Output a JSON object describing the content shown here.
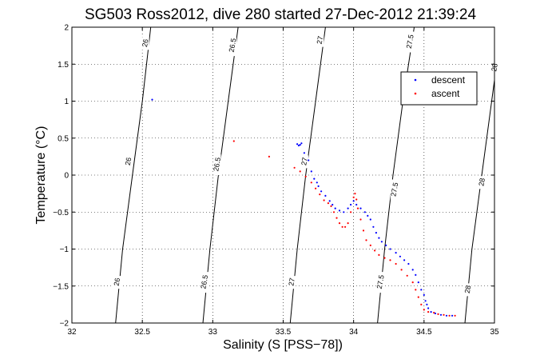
{
  "chart_data": {
    "type": "scatter",
    "title": "SG503 Ross2012, dive 280 started 27-Dec-2012 21:39:24",
    "xlabel": "Salinity (S [PSS−78])",
    "ylabel": "Temperature (°C)",
    "xlim": [
      32,
      35
    ],
    "ylim": [
      -2,
      2
    ],
    "xticks": [
      {
        "value": 32,
        "label": "32"
      },
      {
        "value": 32.5,
        "label": "32.5"
      },
      {
        "value": 33,
        "label": "33"
      },
      {
        "value": 33.5,
        "label": "33.5"
      },
      {
        "value": 34,
        "label": "34"
      },
      {
        "value": 34.5,
        "label": "34.5"
      },
      {
        "value": 35,
        "label": "35"
      }
    ],
    "yticks": [
      {
        "value": -2,
        "label": "−2"
      },
      {
        "value": -1.5,
        "label": "−1.5"
      },
      {
        "value": -1,
        "label": "−1"
      },
      {
        "value": -0.5,
        "label": "−0.5"
      },
      {
        "value": 0,
        "label": "0"
      },
      {
        "value": 0.5,
        "label": "0.5"
      },
      {
        "value": 1,
        "label": "1"
      },
      {
        "value": 1.5,
        "label": "1.5"
      },
      {
        "value": 2,
        "label": "2"
      }
    ],
    "grid": true,
    "legend_position": "top-right",
    "isopycnals": [
      {
        "label": "26",
        "points": [
          [
            32.31,
            -2
          ],
          [
            32.36,
            -1.0
          ],
          [
            32.43,
            0.0
          ],
          [
            32.5,
            1.0
          ],
          [
            32.56,
            2
          ]
        ],
        "label_points": [
          [
            32.32,
            -1.45
          ],
          [
            32.4,
            0.18
          ],
          [
            32.52,
            1.78
          ]
        ]
      },
      {
        "label": "26.5",
        "points": [
          [
            32.93,
            -2
          ],
          [
            32.98,
            -1.0
          ],
          [
            33.04,
            0.0
          ],
          [
            33.11,
            1.0
          ],
          [
            33.18,
            2
          ]
        ],
        "label_points": [
          [
            32.94,
            -1.45
          ],
          [
            33.03,
            0.14
          ],
          [
            33.14,
            1.75
          ]
        ]
      },
      {
        "label": "27",
        "points": [
          [
            33.55,
            -2
          ],
          [
            33.6,
            -1.0
          ],
          [
            33.66,
            0.0
          ],
          [
            33.73,
            1.0
          ],
          [
            33.8,
            2
          ]
        ],
        "label_points": [
          [
            33.56,
            -1.45
          ],
          [
            33.65,
            0.18
          ],
          [
            33.76,
            1.82
          ]
        ]
      },
      {
        "label": "27.5",
        "points": [
          [
            34.17,
            -2
          ],
          [
            34.22,
            -1.0
          ],
          [
            34.28,
            0.0
          ],
          [
            34.35,
            1.0
          ],
          [
            34.43,
            2
          ]
        ],
        "label_points": [
          [
            34.19,
            -1.45
          ],
          [
            34.29,
            -0.2
          ],
          [
            34.4,
            1.8
          ]
        ]
      },
      {
        "label": "28",
        "points": [
          [
            34.79,
            -2
          ],
          [
            34.84,
            -1.0
          ],
          [
            34.91,
            0.0
          ],
          [
            34.98,
            1.0
          ],
          [
            35.05,
            2
          ]
        ],
        "label_points": [
          [
            34.81,
            -1.55
          ],
          [
            34.91,
            -0.1
          ],
          [
            35.0,
            1.45
          ]
        ]
      }
    ],
    "series": [
      {
        "name": "descent",
        "color": "#0000ff",
        "points": [
          [
            32.57,
            1.02
          ],
          [
            33.6,
            0.42
          ],
          [
            33.61,
            0.4
          ],
          [
            33.62,
            0.41
          ],
          [
            33.63,
            0.43
          ],
          [
            33.65,
            0.3
          ],
          [
            33.68,
            0.2
          ],
          [
            33.7,
            0.05
          ],
          [
            33.72,
            -0.05
          ],
          [
            33.74,
            -0.1
          ],
          [
            33.75,
            -0.15
          ],
          [
            33.77,
            -0.22
          ],
          [
            33.8,
            -0.28
          ],
          [
            33.83,
            -0.35
          ],
          [
            33.85,
            -0.4
          ],
          [
            33.87,
            -0.45
          ],
          [
            33.9,
            -0.48
          ],
          [
            33.93,
            -0.5
          ],
          [
            33.96,
            -0.45
          ],
          [
            33.98,
            -0.4
          ],
          [
            34.0,
            -0.35
          ],
          [
            34.02,
            -0.4
          ],
          [
            34.05,
            -0.45
          ],
          [
            34.08,
            -0.5
          ],
          [
            34.1,
            -0.55
          ],
          [
            34.12,
            -0.6
          ],
          [
            34.14,
            -0.7
          ],
          [
            34.16,
            -0.78
          ],
          [
            34.18,
            -0.85
          ],
          [
            34.2,
            -0.9
          ],
          [
            34.23,
            -0.95
          ],
          [
            34.26,
            -1.0
          ],
          [
            34.3,
            -1.05
          ],
          [
            34.33,
            -1.1
          ],
          [
            34.36,
            -1.15
          ],
          [
            34.39,
            -1.2
          ],
          [
            34.42,
            -1.28
          ],
          [
            34.44,
            -1.35
          ],
          [
            34.46,
            -1.45
          ],
          [
            34.48,
            -1.55
          ],
          [
            34.5,
            -1.62
          ],
          [
            34.51,
            -1.7
          ],
          [
            34.52,
            -1.75
          ],
          [
            34.53,
            -1.8
          ],
          [
            34.55,
            -1.85
          ],
          [
            34.58,
            -1.87
          ],
          [
            34.62,
            -1.89
          ],
          [
            34.66,
            -1.9
          ],
          [
            34.7,
            -1.9
          ]
        ]
      },
      {
        "name": "ascent",
        "color": "#ff0000",
        "points": [
          [
            33.15,
            0.46
          ],
          [
            33.4,
            0.25
          ],
          [
            33.58,
            0.1
          ],
          [
            33.62,
            0.05
          ],
          [
            33.66,
            -0.02
          ],
          [
            33.7,
            -0.1
          ],
          [
            33.73,
            -0.18
          ],
          [
            33.76,
            -0.26
          ],
          [
            33.79,
            -0.34
          ],
          [
            33.82,
            -0.38
          ],
          [
            33.84,
            -0.42
          ],
          [
            33.86,
            -0.5
          ],
          [
            33.88,
            -0.58
          ],
          [
            33.9,
            -0.65
          ],
          [
            33.92,
            -0.7
          ],
          [
            33.94,
            -0.7
          ],
          [
            33.96,
            -0.65
          ],
          [
            33.98,
            -0.5
          ],
          [
            34.0,
            -0.3
          ],
          [
            34.01,
            -0.25
          ],
          [
            34.02,
            -0.33
          ],
          [
            34.03,
            -0.45
          ],
          [
            34.05,
            -0.6
          ],
          [
            34.07,
            -0.75
          ],
          [
            34.09,
            -0.88
          ],
          [
            34.12,
            -0.95
          ],
          [
            34.15,
            -1.02
          ],
          [
            34.18,
            -1.08
          ],
          [
            34.22,
            -1.12
          ],
          [
            34.26,
            -1.15
          ],
          [
            34.3,
            -1.2
          ],
          [
            34.34,
            -1.28
          ],
          [
            34.38,
            -1.36
          ],
          [
            34.42,
            -1.45
          ],
          [
            34.44,
            -1.55
          ],
          [
            34.46,
            -1.65
          ],
          [
            34.48,
            -1.75
          ],
          [
            34.5,
            -1.82
          ],
          [
            34.53,
            -1.85
          ],
          [
            34.57,
            -1.86
          ],
          [
            34.6,
            -1.88
          ],
          [
            34.64,
            -1.89
          ],
          [
            34.68,
            -1.9
          ],
          [
            34.72,
            -1.9
          ]
        ]
      }
    ]
  }
}
